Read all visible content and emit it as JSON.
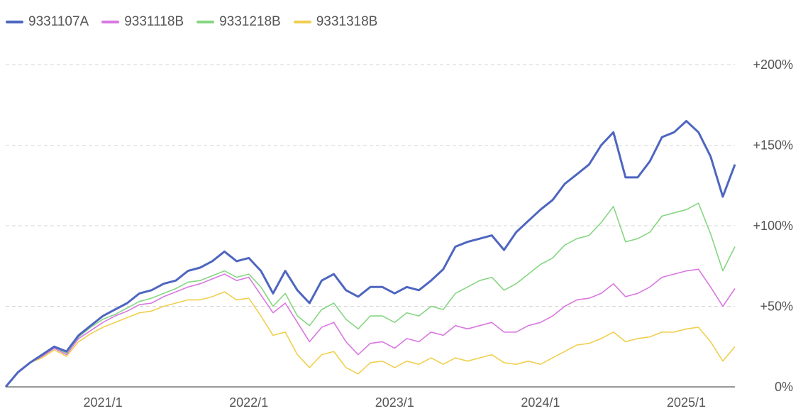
{
  "chart_data": {
    "type": "line",
    "y_unit": "percent",
    "ylim": [
      0,
      200
    ],
    "y_ticks": [
      {
        "value": 0,
        "label": "0%"
      },
      {
        "value": 50,
        "label": "+50%"
      },
      {
        "value": 100,
        "label": "+100%"
      },
      {
        "value": 150,
        "label": "+150%"
      },
      {
        "value": 200,
        "label": "+200%"
      }
    ],
    "x_range": [
      "2020-05",
      "2025-05"
    ],
    "x_ticks": [
      {
        "value": "2021-01",
        "label": "2021/1"
      },
      {
        "value": "2022-01",
        "label": "2022/1"
      },
      {
        "value": "2023-01",
        "label": "2023/1"
      },
      {
        "value": "2024-01",
        "label": "2024/1"
      },
      {
        "value": "2025-01",
        "label": "2025/1"
      }
    ],
    "grid": true,
    "legend_position": "top-left",
    "series": [
      {
        "name": "9331107A",
        "color": "#4e66bf",
        "points": [
          [
            "2020-05",
            0
          ],
          [
            "2020-06",
            9
          ],
          [
            "2020-07",
            15
          ],
          [
            "2020-08",
            20
          ],
          [
            "2020-09",
            25
          ],
          [
            "2020-10",
            22
          ],
          [
            "2020-11",
            32
          ],
          [
            "2020-12",
            38
          ],
          [
            "2021-01",
            44
          ],
          [
            "2021-02",
            48
          ],
          [
            "2021-03",
            52
          ],
          [
            "2021-04",
            58
          ],
          [
            "2021-05",
            60
          ],
          [
            "2021-06",
            64
          ],
          [
            "2021-07",
            66
          ],
          [
            "2021-08",
            72
          ],
          [
            "2021-09",
            74
          ],
          [
            "2021-10",
            78
          ],
          [
            "2021-11",
            84
          ],
          [
            "2021-12",
            78
          ],
          [
            "2022-01",
            80
          ],
          [
            "2022-02",
            72
          ],
          [
            "2022-03",
            58
          ],
          [
            "2022-04",
            72
          ],
          [
            "2022-05",
            60
          ],
          [
            "2022-06",
            52
          ],
          [
            "2022-07",
            66
          ],
          [
            "2022-08",
            70
          ],
          [
            "2022-09",
            60
          ],
          [
            "2022-10",
            56
          ],
          [
            "2022-11",
            62
          ],
          [
            "2022-12",
            62
          ],
          [
            "2023-01",
            58
          ],
          [
            "2023-02",
            62
          ],
          [
            "2023-03",
            60
          ],
          [
            "2023-04",
            66
          ],
          [
            "2023-05",
            73
          ],
          [
            "2023-06",
            87
          ],
          [
            "2023-07",
            90
          ],
          [
            "2023-08",
            92
          ],
          [
            "2023-09",
            94
          ],
          [
            "2023-10",
            85
          ],
          [
            "2023-11",
            96
          ],
          [
            "2023-12",
            103
          ],
          [
            "2024-01",
            110
          ],
          [
            "2024-02",
            116
          ],
          [
            "2024-03",
            126
          ],
          [
            "2024-04",
            132
          ],
          [
            "2024-05",
            138
          ],
          [
            "2024-06",
            150
          ],
          [
            "2024-07",
            158
          ],
          [
            "2024-08",
            130
          ],
          [
            "2024-09",
            130
          ],
          [
            "2024-10",
            140
          ],
          [
            "2024-11",
            155
          ],
          [
            "2024-12",
            158
          ],
          [
            "2025-01",
            165
          ],
          [
            "2025-02",
            158
          ],
          [
            "2025-03",
            143
          ],
          [
            "2025-04",
            118
          ],
          [
            "2025-05",
            138
          ]
        ]
      },
      {
        "name": "9331118B",
        "color": "#d878e0",
        "points": [
          [
            "2020-05",
            0
          ],
          [
            "2020-06",
            9
          ],
          [
            "2020-07",
            15
          ],
          [
            "2020-08",
            19
          ],
          [
            "2020-09",
            24
          ],
          [
            "2020-10",
            20
          ],
          [
            "2020-11",
            30
          ],
          [
            "2020-12",
            35
          ],
          [
            "2021-01",
            40
          ],
          [
            "2021-02",
            44
          ],
          [
            "2021-03",
            47
          ],
          [
            "2021-04",
            51
          ],
          [
            "2021-05",
            52
          ],
          [
            "2021-06",
            56
          ],
          [
            "2021-07",
            59
          ],
          [
            "2021-08",
            62
          ],
          [
            "2021-09",
            64
          ],
          [
            "2021-10",
            67
          ],
          [
            "2021-11",
            70
          ],
          [
            "2021-12",
            66
          ],
          [
            "2022-01",
            68
          ],
          [
            "2022-02",
            57
          ],
          [
            "2022-03",
            46
          ],
          [
            "2022-04",
            52
          ],
          [
            "2022-05",
            40
          ],
          [
            "2022-06",
            28
          ],
          [
            "2022-07",
            37
          ],
          [
            "2022-08",
            40
          ],
          [
            "2022-09",
            28
          ],
          [
            "2022-10",
            20
          ],
          [
            "2022-11",
            27
          ],
          [
            "2022-12",
            28
          ],
          [
            "2023-01",
            24
          ],
          [
            "2023-02",
            30
          ],
          [
            "2023-03",
            28
          ],
          [
            "2023-04",
            34
          ],
          [
            "2023-05",
            32
          ],
          [
            "2023-06",
            38
          ],
          [
            "2023-07",
            36
          ],
          [
            "2023-08",
            38
          ],
          [
            "2023-09",
            40
          ],
          [
            "2023-10",
            34
          ],
          [
            "2023-11",
            34
          ],
          [
            "2023-12",
            38
          ],
          [
            "2024-01",
            40
          ],
          [
            "2024-02",
            44
          ],
          [
            "2024-03",
            50
          ],
          [
            "2024-04",
            54
          ],
          [
            "2024-05",
            55
          ],
          [
            "2024-06",
            58
          ],
          [
            "2024-07",
            64
          ],
          [
            "2024-08",
            56
          ],
          [
            "2024-09",
            58
          ],
          [
            "2024-10",
            62
          ],
          [
            "2024-11",
            68
          ],
          [
            "2024-12",
            70
          ],
          [
            "2025-01",
            72
          ],
          [
            "2025-02",
            73
          ],
          [
            "2025-03",
            62
          ],
          [
            "2025-04",
            50
          ],
          [
            "2025-05",
            61
          ]
        ]
      },
      {
        "name": "9331218B",
        "color": "#86d682",
        "points": [
          [
            "2020-05",
            0
          ],
          [
            "2020-06",
            9
          ],
          [
            "2020-07",
            15
          ],
          [
            "2020-08",
            19
          ],
          [
            "2020-09",
            24
          ],
          [
            "2020-10",
            21
          ],
          [
            "2020-11",
            31
          ],
          [
            "2020-12",
            37
          ],
          [
            "2021-01",
            42
          ],
          [
            "2021-02",
            45
          ],
          [
            "2021-03",
            49
          ],
          [
            "2021-04",
            53
          ],
          [
            "2021-05",
            55
          ],
          [
            "2021-06",
            58
          ],
          [
            "2021-07",
            61
          ],
          [
            "2021-08",
            65
          ],
          [
            "2021-09",
            66
          ],
          [
            "2021-10",
            69
          ],
          [
            "2021-11",
            72
          ],
          [
            "2021-12",
            68
          ],
          [
            "2022-01",
            70
          ],
          [
            "2022-02",
            62
          ],
          [
            "2022-03",
            50
          ],
          [
            "2022-04",
            58
          ],
          [
            "2022-05",
            44
          ],
          [
            "2022-06",
            38
          ],
          [
            "2022-07",
            48
          ],
          [
            "2022-08",
            52
          ],
          [
            "2022-09",
            42
          ],
          [
            "2022-10",
            36
          ],
          [
            "2022-11",
            44
          ],
          [
            "2022-12",
            44
          ],
          [
            "2023-01",
            40
          ],
          [
            "2023-02",
            46
          ],
          [
            "2023-03",
            44
          ],
          [
            "2023-04",
            50
          ],
          [
            "2023-05",
            48
          ],
          [
            "2023-06",
            58
          ],
          [
            "2023-07",
            62
          ],
          [
            "2023-08",
            66
          ],
          [
            "2023-09",
            68
          ],
          [
            "2023-10",
            60
          ],
          [
            "2023-11",
            64
          ],
          [
            "2023-12",
            70
          ],
          [
            "2024-01",
            76
          ],
          [
            "2024-02",
            80
          ],
          [
            "2024-03",
            88
          ],
          [
            "2024-04",
            92
          ],
          [
            "2024-05",
            94
          ],
          [
            "2024-06",
            102
          ],
          [
            "2024-07",
            112
          ],
          [
            "2024-08",
            90
          ],
          [
            "2024-09",
            92
          ],
          [
            "2024-10",
            96
          ],
          [
            "2024-11",
            106
          ],
          [
            "2024-12",
            108
          ],
          [
            "2025-01",
            110
          ],
          [
            "2025-02",
            114
          ],
          [
            "2025-03",
            95
          ],
          [
            "2025-04",
            72
          ],
          [
            "2025-05",
            87
          ]
        ]
      },
      {
        "name": "9331318B",
        "color": "#f0cf4e",
        "points": [
          [
            "2020-05",
            0
          ],
          [
            "2020-06",
            9
          ],
          [
            "2020-07",
            15
          ],
          [
            "2020-08",
            18
          ],
          [
            "2020-09",
            23
          ],
          [
            "2020-10",
            19
          ],
          [
            "2020-11",
            28
          ],
          [
            "2020-12",
            33
          ],
          [
            "2021-01",
            37
          ],
          [
            "2021-02",
            40
          ],
          [
            "2021-03",
            43
          ],
          [
            "2021-04",
            46
          ],
          [
            "2021-05",
            47
          ],
          [
            "2021-06",
            50
          ],
          [
            "2021-07",
            52
          ],
          [
            "2021-08",
            54
          ],
          [
            "2021-09",
            54
          ],
          [
            "2021-10",
            56
          ],
          [
            "2021-11",
            59
          ],
          [
            "2021-12",
            54
          ],
          [
            "2022-01",
            55
          ],
          [
            "2022-02",
            44
          ],
          [
            "2022-03",
            32
          ],
          [
            "2022-04",
            34
          ],
          [
            "2022-05",
            20
          ],
          [
            "2022-06",
            12
          ],
          [
            "2022-07",
            20
          ],
          [
            "2022-08",
            22
          ],
          [
            "2022-09",
            12
          ],
          [
            "2022-10",
            8
          ],
          [
            "2022-11",
            15
          ],
          [
            "2022-12",
            16
          ],
          [
            "2023-01",
            12
          ],
          [
            "2023-02",
            16
          ],
          [
            "2023-03",
            14
          ],
          [
            "2023-04",
            18
          ],
          [
            "2023-05",
            14
          ],
          [
            "2023-06",
            18
          ],
          [
            "2023-07",
            16
          ],
          [
            "2023-08",
            18
          ],
          [
            "2023-09",
            20
          ],
          [
            "2023-10",
            15
          ],
          [
            "2023-11",
            14
          ],
          [
            "2023-12",
            16
          ],
          [
            "2024-01",
            14
          ],
          [
            "2024-02",
            18
          ],
          [
            "2024-03",
            22
          ],
          [
            "2024-04",
            26
          ],
          [
            "2024-05",
            27
          ],
          [
            "2024-06",
            30
          ],
          [
            "2024-07",
            34
          ],
          [
            "2024-08",
            28
          ],
          [
            "2024-09",
            30
          ],
          [
            "2024-10",
            31
          ],
          [
            "2024-11",
            34
          ],
          [
            "2024-12",
            34
          ],
          [
            "2025-01",
            36
          ],
          [
            "2025-02",
            37
          ],
          [
            "2025-03",
            28
          ],
          [
            "2025-04",
            16
          ],
          [
            "2025-05",
            25
          ]
        ]
      }
    ]
  }
}
